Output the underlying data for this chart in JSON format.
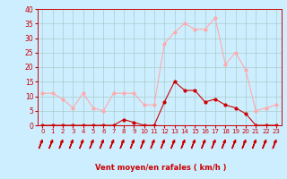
{
  "hours": [
    0,
    1,
    2,
    3,
    4,
    5,
    6,
    7,
    8,
    9,
    10,
    11,
    12,
    13,
    14,
    15,
    16,
    17,
    18,
    19,
    20,
    21,
    22,
    23
  ],
  "wind_avg": [
    0,
    0,
    0,
    0,
    0,
    0,
    0,
    0,
    2,
    1,
    0,
    0,
    8,
    15,
    12,
    12,
    8,
    9,
    7,
    6,
    4,
    0,
    0,
    0
  ],
  "wind_gust": [
    11,
    11,
    9,
    6,
    11,
    6,
    5,
    11,
    11,
    11,
    7,
    7,
    28,
    32,
    35,
    33,
    33,
    37,
    21,
    25,
    19,
    5,
    6,
    7
  ],
  "xlabel": "Vent moyen/en rafales ( km/h )",
  "ylim": [
    0,
    40
  ],
  "yticks": [
    0,
    5,
    10,
    15,
    20,
    25,
    30,
    35,
    40
  ],
  "xticks": [
    0,
    1,
    2,
    3,
    4,
    5,
    6,
    7,
    8,
    9,
    10,
    11,
    12,
    13,
    14,
    15,
    16,
    17,
    18,
    19,
    20,
    21,
    22,
    23
  ],
  "bg_color": "#cceeff",
  "grid_color": "#aacccc",
  "line_avg_color": "#cc0000",
  "line_gust_color": "#ffaaaa",
  "arrow_color": "#cc0000"
}
